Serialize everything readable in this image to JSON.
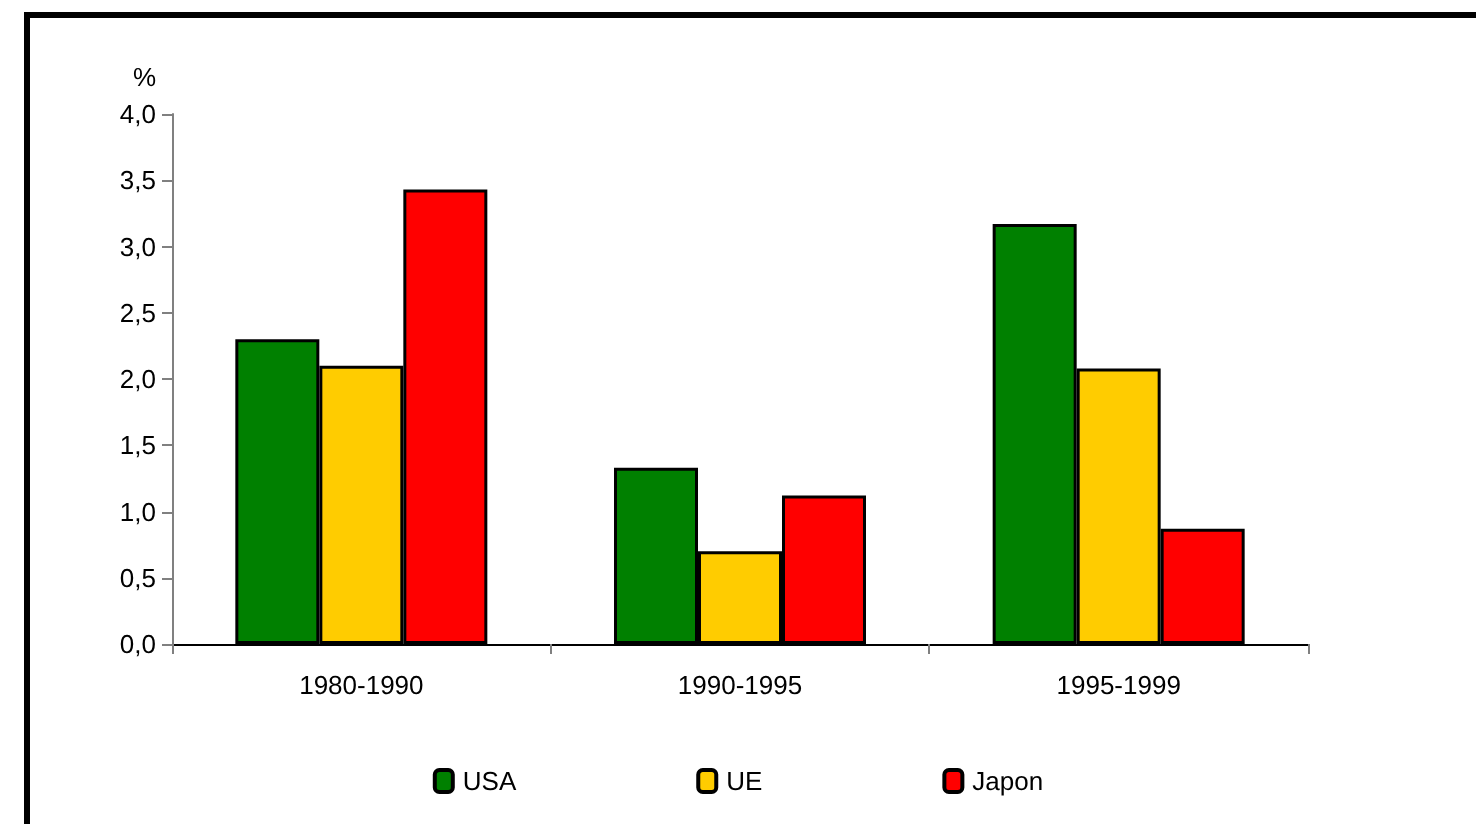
{
  "chart_data": {
    "type": "bar",
    "ylabel": "%",
    "categories": [
      "1980-1990",
      "1990-1995",
      "1995-1999"
    ],
    "series": [
      {
        "name": "USA",
        "color": "#008000",
        "values": [
          2.3,
          1.33,
          3.17
        ]
      },
      {
        "name": "UE",
        "color": "#ffcc00",
        "values": [
          2.1,
          0.7,
          2.08
        ]
      },
      {
        "name": "Japon",
        "color": "#ff0000",
        "values": [
          3.43,
          1.12,
          0.87
        ]
      }
    ],
    "ylim": [
      0,
      4
    ],
    "yticks": [
      {
        "value": 0,
        "label": "0,0"
      },
      {
        "value": 0.5,
        "label": "0,5"
      },
      {
        "value": 1,
        "label": "1,0"
      },
      {
        "value": 1.5,
        "label": "1,5"
      },
      {
        "value": 2,
        "label": "2,0"
      },
      {
        "value": 2.5,
        "label": "2,5"
      },
      {
        "value": 3,
        "label": "3,0"
      },
      {
        "value": 3.5,
        "label": "3,5"
      },
      {
        "value": 4,
        "label": "4,0"
      }
    ],
    "grid": false,
    "legend": "bottom"
  }
}
